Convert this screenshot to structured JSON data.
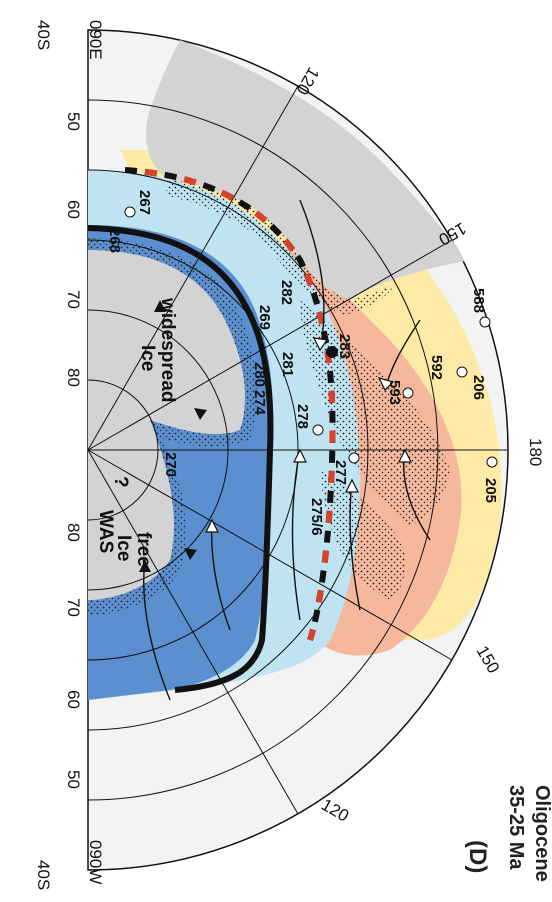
{
  "map": {
    "panel_label": "(D)",
    "age": "35-25 Ma",
    "epoch": "Oligocene",
    "corner_labels": {
      "top_lat": "40S",
      "top_lon": "090E",
      "bottom_lat": "40S",
      "bottom_lon": "090W"
    },
    "latitude_labels_top": [
      "50",
      "60",
      "70",
      "80"
    ],
    "latitude_labels_bottom": [
      "80",
      "70",
      "60",
      "50"
    ],
    "longitude_labels": [
      "120",
      "150",
      "180",
      "150",
      "120"
    ],
    "region_labels": {
      "ice_widespread_1": "Ice",
      "ice_widespread_2": "widespread",
      "ice_free_1": "Ice",
      "ice_free_2": "free",
      "was": "WAS",
      "question": "?"
    },
    "sites": [
      "267",
      "268",
      "282",
      "269",
      "283",
      "280",
      "281",
      "274",
      "278",
      "588",
      "593",
      "592",
      "206",
      "270",
      "277",
      "205",
      "275/6"
    ],
    "colors": {
      "antarctica": "#d3d3d3",
      "australia": "#d3d3d3",
      "deep_blue": "#5b8fcf",
      "light_blue": "#bfe3f1",
      "salmon": "#f6b89d",
      "yellow": "#fdeaa6",
      "red_dash": "#d9412b"
    }
  }
}
